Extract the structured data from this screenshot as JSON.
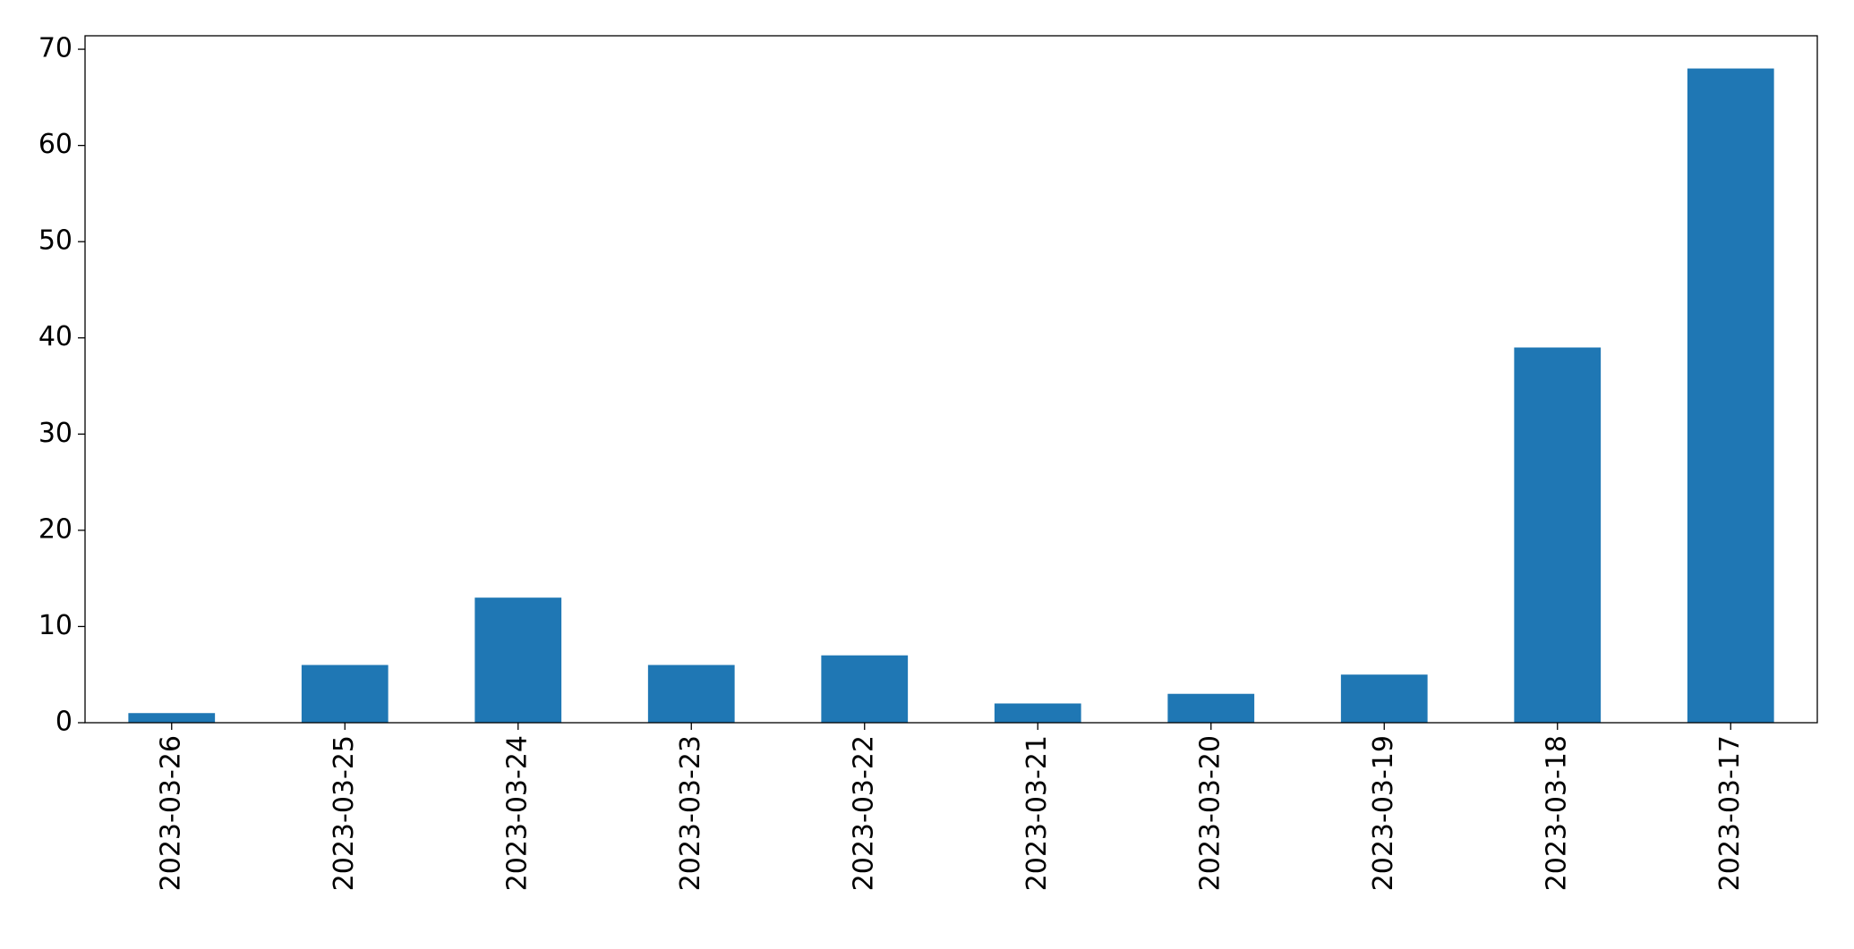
{
  "chart_data": {
    "type": "bar",
    "categories": [
      "2023-03-26",
      "2023-03-25",
      "2023-03-24",
      "2023-03-23",
      "2023-03-22",
      "2023-03-21",
      "2023-03-20",
      "2023-03-19",
      "2023-03-18",
      "2023-03-17"
    ],
    "values": [
      1,
      6,
      13,
      6,
      7,
      2,
      3,
      5,
      39,
      68
    ],
    "color": "#1f77b4",
    "ylim": [
      0,
      71.4
    ],
    "yticks": [
      0,
      10,
      20,
      30,
      40,
      50,
      60,
      70
    ],
    "grid": false
  }
}
